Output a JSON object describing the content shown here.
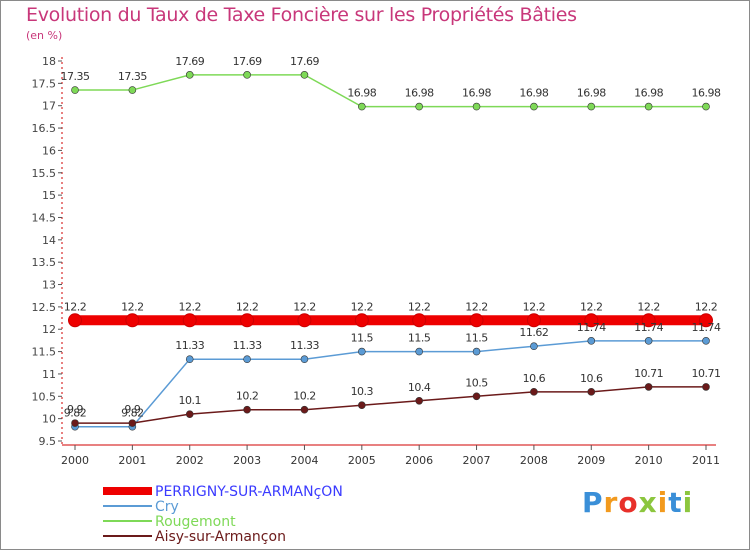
{
  "title": "Evolution du Taux de Taxe Foncière sur les Propriétés Bâties",
  "subtitle": "(en %)",
  "logo": {
    "text": "Proxiti",
    "colors": [
      "#3a8fd8",
      "#f29a1e",
      "#e8302a",
      "#8cc63e",
      "#f29a1e",
      "#3a8fd8",
      "#8cc63e"
    ]
  },
  "chart_data": {
    "type": "line",
    "title": "Evolution du Taux de Taxe Foncière sur les Propriétés Bâties",
    "ylabel": "(en %)",
    "x": [
      "2000",
      "2001",
      "2002",
      "2003",
      "2004",
      "2005",
      "2006",
      "2007",
      "2008",
      "2009",
      "2010",
      "2011"
    ],
    "ylim": [
      9.5,
      18
    ],
    "yticks": [
      9.5,
      10,
      10.5,
      11,
      11.5,
      12,
      12.5,
      13,
      13.5,
      14,
      14.5,
      15,
      15.5,
      16,
      16.5,
      17,
      17.5,
      18
    ],
    "grid": false,
    "legend_position": "bottom-left",
    "series": [
      {
        "name": "PERRIGNY-SUR-ARMANçON",
        "color": "#ee0000",
        "labelColor": "#3a3aff",
        "values": [
          12.2,
          12.2,
          12.2,
          12.2,
          12.2,
          12.2,
          12.2,
          12.2,
          12.2,
          12.2,
          12.2,
          12.2
        ],
        "labels": [
          "12.2",
          "12.2",
          "12.2",
          "12.2",
          "12.2",
          "12.2",
          "12.2",
          "12.2",
          "12.2",
          "12.2",
          "12.2",
          "12.2"
        ]
      },
      {
        "name": "Cry",
        "color": "#5b9bd5",
        "labelColor": "#5b9bd5",
        "values": [
          9.82,
          9.82,
          11.33,
          11.33,
          11.33,
          11.5,
          11.5,
          11.5,
          11.62,
          11.74,
          11.74,
          11.74
        ],
        "labels": [
          "9.82",
          "9.82",
          "11.33",
          "11.33",
          "11.33",
          "11.5",
          "11.5",
          "11.5",
          "11.62",
          "11.74",
          "11.74",
          "11.74"
        ]
      },
      {
        "name": "Rougemont",
        "color": "#7ed957",
        "labelColor": "#7ed957",
        "values": [
          17.35,
          17.35,
          17.69,
          17.69,
          17.69,
          16.98,
          16.98,
          16.98,
          16.98,
          16.98,
          16.98,
          16.98
        ],
        "labels": [
          "17.35",
          "17.35",
          "17.69",
          "17.69",
          "17.69",
          "16.98",
          "16.98",
          "16.98",
          "16.98",
          "16.98",
          "16.98",
          "16.98"
        ]
      },
      {
        "name": "Aisy-sur-Armançon",
        "color": "#6b1a1a",
        "labelColor": "#6b1a1a",
        "values": [
          9.9,
          9.9,
          10.1,
          10.2,
          10.2,
          10.3,
          10.4,
          10.5,
          10.6,
          10.6,
          10.71,
          10.71
        ],
        "labels": [
          "9.9",
          "9.9",
          "10.1",
          "10.2",
          "10.2",
          "10.3",
          "10.4",
          "10.5",
          "10.6",
          "10.6",
          "10.71",
          "10.71"
        ]
      }
    ]
  }
}
